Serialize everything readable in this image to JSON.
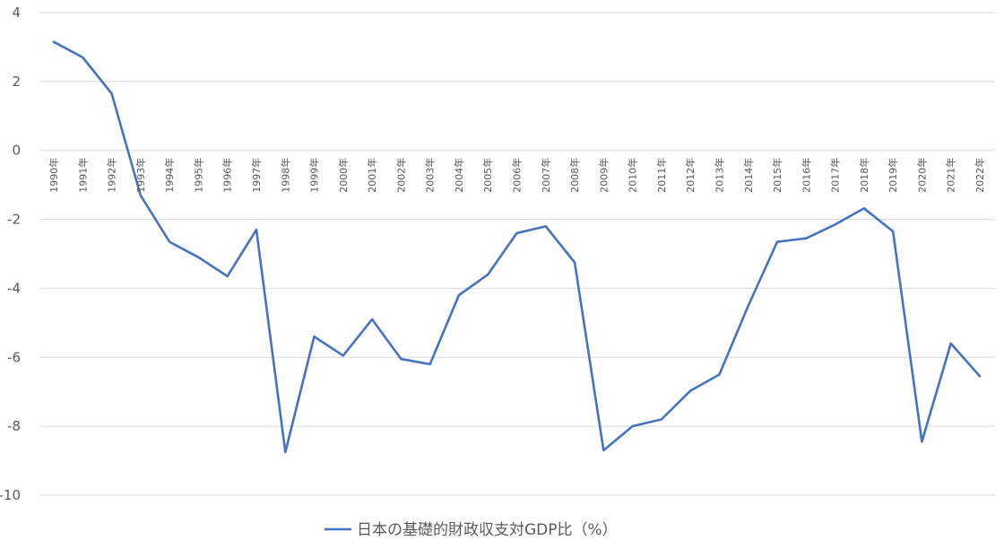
{
  "chart_data": {
    "type": "line",
    "title": "",
    "xlabel": "",
    "ylabel": "",
    "ylim": [
      -10,
      4
    ],
    "y_ticks": [
      4,
      2,
      0,
      -2,
      -4,
      -6,
      -8,
      -10
    ],
    "grid": true,
    "legend_position": "bottom",
    "categories": [
      "1990年",
      "1991年",
      "1992年",
      "1993年",
      "1994年",
      "1995年",
      "1996年",
      "1997年",
      "1998年",
      "1999年",
      "2000年",
      "2001年",
      "2002年",
      "2003年",
      "2004年",
      "2005年",
      "2006年",
      "2007年",
      "2008年",
      "2009年",
      "2010年",
      "2011年",
      "2012年",
      "2013年",
      "2014年",
      "2015年",
      "2016年",
      "2017年",
      "2018年",
      "2019年",
      "2020年",
      "2021年",
      "2022年"
    ],
    "series": [
      {
        "name": "日本の基礎的財政収支対GDP比（%）",
        "color": "#4472C4",
        "values": [
          3.15,
          2.7,
          1.65,
          -1.3,
          -2.65,
          -3.1,
          -3.65,
          -2.3,
          -8.75,
          -5.4,
          -5.95,
          -4.9,
          -6.05,
          -6.2,
          -4.2,
          -3.6,
          -2.4,
          -2.2,
          -3.25,
          -8.7,
          -8.0,
          -7.8,
          -6.97,
          -6.5,
          -4.5,
          -2.65,
          -2.55,
          -2.15,
          -1.68,
          -2.35,
          -8.45,
          -5.6,
          -6.55
        ]
      }
    ],
    "colors": {
      "grid": "#D9D9D9",
      "text": "#595959",
      "line": "#4472C4"
    }
  }
}
